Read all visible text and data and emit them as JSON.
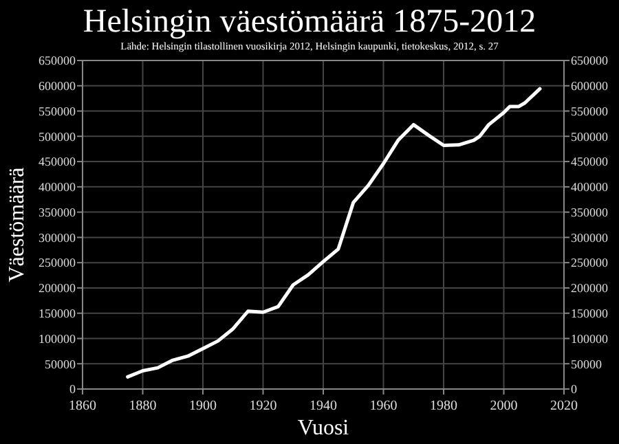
{
  "chart_data": {
    "type": "line",
    "title": "Helsingin väestömäärä 1875-2012",
    "subtitle": "Lähde: Helsingin tilastollinen vuosikirja 2012, Helsingin kaupunki, tietokeskus, 2012, s. 27",
    "xlabel": "Vuosi",
    "ylabel": "Väestömäärä",
    "x": [
      1875,
      1880,
      1885,
      1890,
      1895,
      1900,
      1905,
      1910,
      1915,
      1920,
      1925,
      1930,
      1935,
      1940,
      1945,
      1950,
      1955,
      1960,
      1965,
      1970,
      1975,
      1980,
      1985,
      1990,
      1992,
      1995,
      2000,
      2002,
      2005,
      2007,
      2012
    ],
    "series": [
      {
        "color": "#ffffff",
        "values": [
          24000,
          36000,
          42000,
          57000,
          65000,
          80000,
          95000,
          119000,
          154000,
          152000,
          163000,
          206000,
          226000,
          252000,
          277000,
          369000,
          403000,
          446000,
          493000,
          523000,
          502000,
          482000,
          483000,
          492000,
          500000,
          523000,
          547000,
          559000,
          559000,
          566000,
          594000
        ]
      }
    ],
    "xlim": [
      1860,
      2020
    ],
    "xticks": [
      1860,
      1880,
      1900,
      1920,
      1940,
      1960,
      1980,
      2000,
      2020
    ],
    "ylim": [
      0,
      650000
    ],
    "yticks": [
      0,
      50000,
      100000,
      150000,
      200000,
      250000,
      300000,
      350000,
      400000,
      450000,
      500000,
      550000,
      600000,
      650000
    ],
    "y2lim": [
      0,
      650000
    ],
    "y2ticks": [
      0,
      50000,
      100000,
      150000,
      200000,
      250000,
      300000,
      350000,
      400000,
      450000,
      500000,
      550000,
      600000,
      650000
    ],
    "grid": true,
    "marker": "none",
    "line_style": "solid"
  }
}
